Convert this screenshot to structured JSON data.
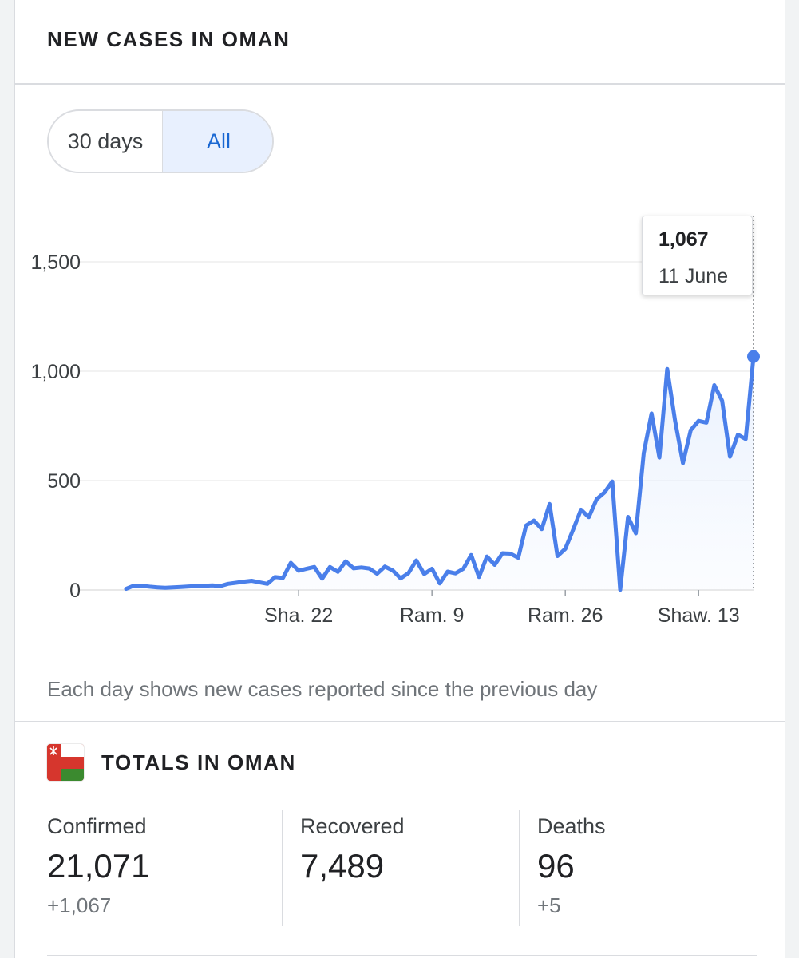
{
  "cases_card": {
    "title": "NEW CASES IN OMAN",
    "range_options": [
      "30 days",
      "All"
    ],
    "selected_range": "All",
    "footnote": "Each day shows new cases reported since the previous day"
  },
  "tooltip": {
    "value": "1,067",
    "date": "11 June"
  },
  "colors": {
    "line": "#4a7fea",
    "area": "#e8f0fe",
    "grid": "#eeeeee",
    "axis_text": "#3c4043"
  },
  "chart_data": {
    "type": "line",
    "title": "",
    "xlabel": "",
    "ylabel": "",
    "ylim": [
      0,
      1500
    ],
    "yticks": [
      "0",
      "500",
      "1,000",
      "1,500"
    ],
    "ytick_values": [
      0,
      500,
      1000,
      1500
    ],
    "xticks": [
      "Sha. 22",
      "Ram. 9",
      "Ram. 26",
      "Shaw. 13"
    ],
    "xtick_index": [
      22,
      39,
      56,
      73
    ],
    "grid": true,
    "series": [
      {
        "values": [
          5,
          20,
          19,
          15,
          12,
          10,
          12,
          14,
          16,
          18,
          19,
          21,
          18,
          28,
          33,
          38,
          42,
          35,
          28,
          59,
          55,
          124,
          88,
          97,
          105,
          52,
          105,
          83,
          131,
          99,
          103,
          98,
          74,
          107,
          89,
          53,
          77,
          135,
          73,
          97,
          30,
          84,
          76,
          97,
          160,
          59,
          153,
          115,
          168,
          166,
          147,
          295,
          317,
          278,
          393,
          155,
          188,
          275,
          367,
          333,
          415,
          446,
          496,
          1,
          334,
          259,
          626,
          807,
          605,
          1010,
          773,
          580,
          731,
          773,
          765,
          936,
          865,
          609,
          710,
          690,
          1067
        ]
      }
    ]
  },
  "totals": {
    "title": "TOTALS IN OMAN",
    "flag_icon": "oman-flag-icon",
    "confirmed": {
      "label": "Confirmed",
      "value": "21,071",
      "delta": "+1,067"
    },
    "recovered": {
      "label": "Recovered",
      "value": "7,489",
      "delta": ""
    },
    "deaths": {
      "label": "Deaths",
      "value": "96",
      "delta": "+5"
    }
  }
}
